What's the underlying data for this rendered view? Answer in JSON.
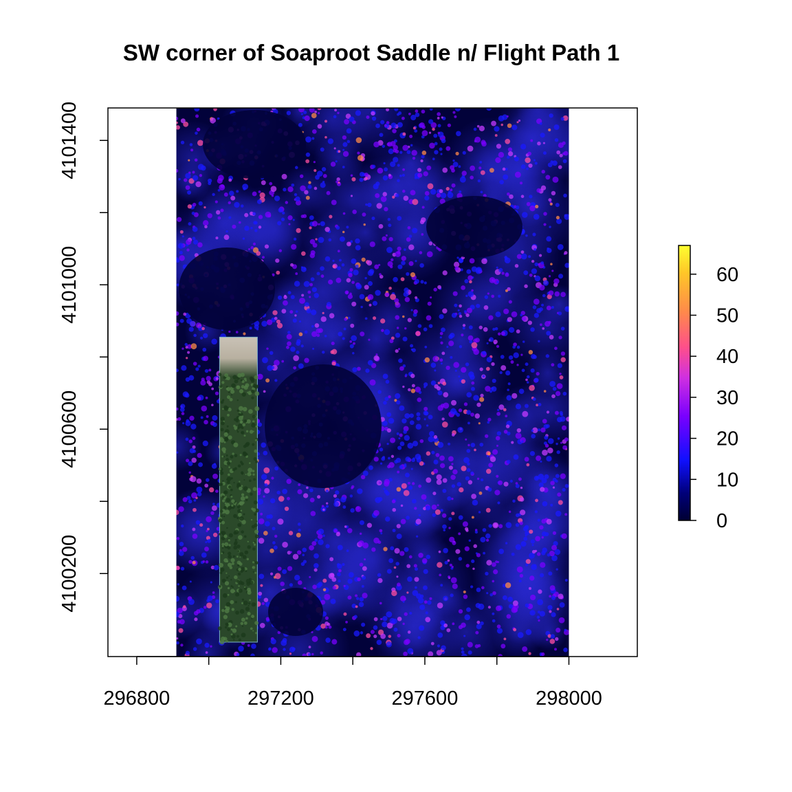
{
  "chart_data": {
    "type": "heatmap",
    "title": "SW corner of Soaproot Saddle n/ Flight Path 1",
    "xlabel": "",
    "ylabel": "",
    "xlim": [
      296720,
      298190
    ],
    "ylim": [
      4099970,
      4101490
    ],
    "x_ticks": [
      296800,
      297000,
      297200,
      297400,
      297600,
      297800,
      298000
    ],
    "x_tick_labels": [
      "296800",
      "297200",
      "297600",
      "298000"
    ],
    "x_tick_label_values": [
      296800,
      297200,
      297600,
      298000
    ],
    "y_ticks": [
      4100200,
      4100400,
      4100600,
      4100800,
      4101000,
      4101200,
      4101400
    ],
    "y_tick_labels": [
      "4100200",
      "4100600",
      "4101000",
      "4101400"
    ],
    "y_tick_label_values": [
      4100200,
      4100600,
      4101000,
      4101400
    ],
    "raster_extent": {
      "xmin": 296910,
      "xmax": 298000,
      "ymin": 4099970,
      "ymax": 4101490
    },
    "rgb_image_extent": {
      "xmin": 297030,
      "xmax": 297135,
      "ymin": 4100010,
      "ymax": 4100855
    },
    "legend": {
      "position": "right",
      "min": 0,
      "max": 67,
      "ticks": [
        "0",
        "10",
        "20",
        "30",
        "40",
        "50",
        "60"
      ],
      "tick_values": [
        0,
        10,
        20,
        30,
        40,
        50,
        60
      ]
    },
    "colormap": [
      "#000033",
      "#0000aa",
      "#1a1aff",
      "#7a00ff",
      "#c33aff",
      "#ff4fa0",
      "#ff8a4a",
      "#ffc628",
      "#ffff30"
    ],
    "background_color": "#02023a",
    "grid": false
  }
}
